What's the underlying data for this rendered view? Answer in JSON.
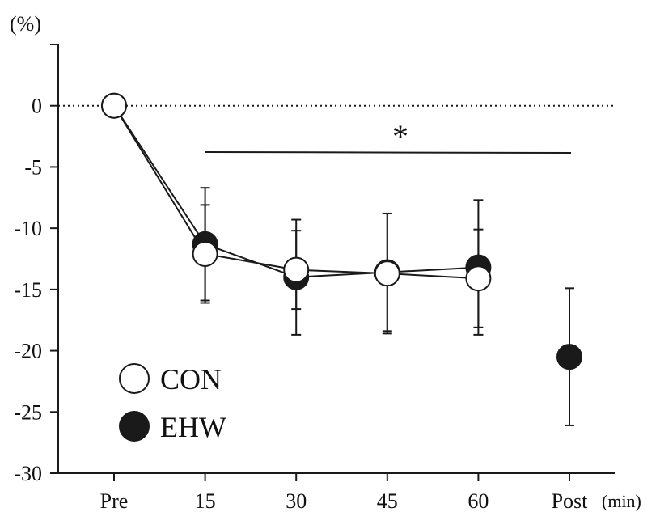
{
  "chart_data": {
    "type": "line",
    "title": "",
    "xlabel": "",
    "ylabel": "",
    "y_unit_label": "(%)",
    "x_unit_label": "(min)",
    "categories": [
      "Pre",
      "15",
      "30",
      "45",
      "60",
      "Post"
    ],
    "y_ticks": [
      "0",
      "-5",
      "-10",
      "-15",
      "-20",
      "-25",
      "-30"
    ],
    "ylim": [
      -30,
      5
    ],
    "reference_line_y": 0,
    "significance": {
      "symbol": "*",
      "from": "15",
      "to": "Post"
    },
    "legend_position": "bottom-left",
    "series": [
      {
        "name": "CON",
        "marker": "open-circle",
        "values": [
          0,
          -12.1,
          -13.4,
          -13.7,
          -14.1,
          null
        ],
        "sd": [
          0,
          4.0,
          3.2,
          4.9,
          4.0,
          null
        ]
      },
      {
        "name": "EHW",
        "marker": "filled-circle",
        "values": [
          0,
          -11.3,
          -14.0,
          -13.6,
          -13.2,
          -20.5
        ],
        "sd": [
          0,
          4.6,
          4.7,
          4.8,
          5.5,
          5.6
        ]
      }
    ],
    "colors": {
      "line": "#1a1a1a",
      "filled_marker": "#1a1a1a",
      "open_marker_fill": "#ffffff"
    }
  }
}
